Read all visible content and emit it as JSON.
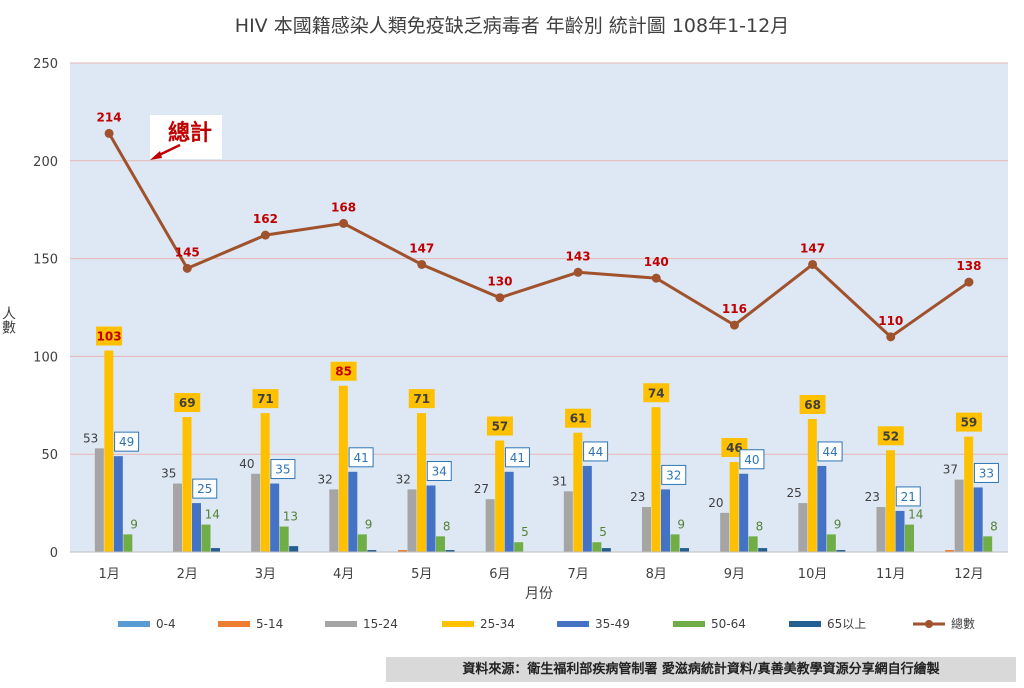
{
  "chart_data": {
    "type": "bar",
    "title": "HIV 本國籍感染人類免疫缺乏病毒者 年齡別 統計圖  108年1-12月",
    "xlabel": "月份",
    "ylabel": "人數",
    "ylim": [
      0,
      250
    ],
    "yticks": [
      0,
      50,
      100,
      150,
      200,
      250
    ],
    "grid": true,
    "legend_position": "bottom",
    "categories": [
      "1月",
      "2月",
      "3月",
      "4月",
      "5月",
      "6月",
      "7月",
      "8月",
      "9月",
      "10月",
      "11月",
      "12月"
    ],
    "series": [
      {
        "name": "0-4",
        "type": "bar",
        "color": "#5b9bd5",
        "values": [
          0,
          0,
          0,
          0,
          0,
          0,
          0,
          0,
          0,
          0,
          0,
          0
        ]
      },
      {
        "name": "5-14",
        "type": "bar",
        "color": "#ed7d31",
        "values": [
          0,
          0,
          0,
          0,
          1,
          0,
          0,
          0,
          0,
          0,
          0,
          1
        ]
      },
      {
        "name": "15-24",
        "type": "bar",
        "color": "#a5a5a5",
        "values": [
          53,
          35,
          40,
          32,
          32,
          27,
          31,
          23,
          20,
          25,
          23,
          37
        ]
      },
      {
        "name": "25-34",
        "type": "bar",
        "color": "#ffc000",
        "values": [
          103,
          69,
          71,
          85,
          71,
          57,
          61,
          74,
          46,
          68,
          52,
          59
        ]
      },
      {
        "name": "35-49",
        "type": "bar",
        "color": "#4472c4",
        "values": [
          49,
          25,
          35,
          41,
          34,
          41,
          44,
          32,
          40,
          44,
          21,
          33
        ]
      },
      {
        "name": "50-64",
        "type": "bar",
        "color": "#70ad47",
        "values": [
          9,
          14,
          13,
          9,
          8,
          5,
          5,
          9,
          8,
          9,
          14,
          8
        ]
      },
      {
        "name": "65以上",
        "type": "bar",
        "color": "#255e91",
        "values": [
          0,
          2,
          3,
          1,
          1,
          0,
          2,
          2,
          2,
          1,
          0,
          0
        ]
      },
      {
        "name": "總數",
        "type": "line",
        "color": "#a0522d",
        "values": [
          214,
          145,
          162,
          168,
          147,
          130,
          143,
          140,
          116,
          147,
          110,
          138
        ]
      }
    ],
    "annotation": "總計"
  },
  "source_text": "資料來源：衛生福利部疾病管制署 愛滋病統計資料/真善美教學資源分享網自行繪製"
}
